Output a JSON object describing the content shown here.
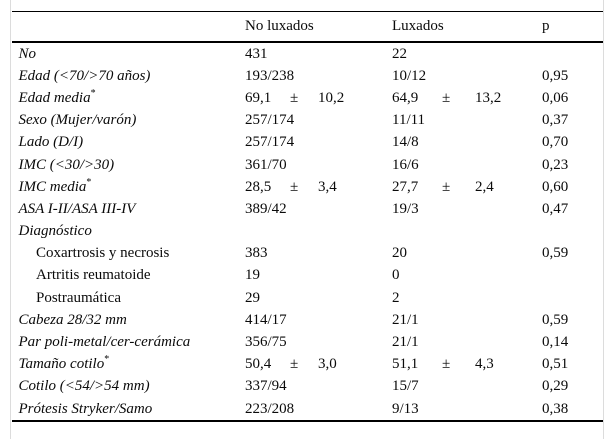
{
  "colors": {
    "background": "#ffffff",
    "text": "#0a0a0a",
    "rule": "#000000",
    "frame": "#dcdcdc"
  },
  "table": {
    "columns": [
      "",
      "No luxados",
      "Luxados",
      "p"
    ],
    "rows": [
      {
        "label": "No",
        "italic": true,
        "indent": false,
        "sup": "",
        "no_luxados": [
          "431",
          "",
          ""
        ],
        "luxados": [
          "22",
          "",
          ""
        ],
        "p": ""
      },
      {
        "label": "Edad (<70/>70 años)",
        "italic": true,
        "indent": false,
        "sup": "",
        "no_luxados": [
          "193/238",
          "",
          ""
        ],
        "luxados": [
          "10/12",
          "",
          ""
        ],
        "p": "0,95"
      },
      {
        "label": "Edad media",
        "italic": true,
        "indent": false,
        "sup": "*",
        "no_luxados": [
          "69,1",
          "±",
          "10,2"
        ],
        "luxados": [
          "64,9",
          "±",
          "13,2"
        ],
        "p": "0,06"
      },
      {
        "label": "Sexo (Mujer/varón)",
        "italic": true,
        "indent": false,
        "sup": "",
        "no_luxados": [
          "257/174",
          "",
          ""
        ],
        "luxados": [
          "11/11",
          "",
          ""
        ],
        "p": "0,37"
      },
      {
        "label": "Lado (D/I)",
        "italic": true,
        "indent": false,
        "sup": "",
        "no_luxados": [
          "257/174",
          "",
          ""
        ],
        "luxados": [
          "14/8",
          "",
          ""
        ],
        "p": "0,70"
      },
      {
        "label": "IMC (<30/>30)",
        "italic": true,
        "indent": false,
        "sup": "",
        "no_luxados": [
          "361/70",
          "",
          ""
        ],
        "luxados": [
          "16/6",
          "",
          ""
        ],
        "p": "0,23"
      },
      {
        "label": "IMC media",
        "italic": true,
        "indent": false,
        "sup": "*",
        "no_luxados": [
          "28,5",
          "±",
          "3,4"
        ],
        "luxados": [
          "27,7",
          "±",
          "2,4"
        ],
        "p": "0,60"
      },
      {
        "label": "ASA I-II/ASA III-IV",
        "italic": true,
        "indent": false,
        "sup": "",
        "no_luxados": [
          "389/42",
          "",
          ""
        ],
        "luxados": [
          "19/3",
          "",
          ""
        ],
        "p": "0,47"
      },
      {
        "label": "Diagnóstico",
        "italic": true,
        "indent": false,
        "sup": "",
        "no_luxados": [
          "",
          "",
          ""
        ],
        "luxados": [
          "",
          "",
          ""
        ],
        "p": ""
      },
      {
        "label": "Coxartrosis y necrosis",
        "italic": false,
        "indent": true,
        "sup": "",
        "no_luxados": [
          "383",
          "",
          ""
        ],
        "luxados": [
          "20",
          "",
          ""
        ],
        "p": "0,59"
      },
      {
        "label": "Artritis reumatoide",
        "italic": false,
        "indent": true,
        "sup": "",
        "no_luxados": [
          "19",
          "",
          ""
        ],
        "luxados": [
          "0",
          "",
          ""
        ],
        "p": ""
      },
      {
        "label": "Postraumática",
        "italic": false,
        "indent": true,
        "sup": "",
        "no_luxados": [
          "29",
          "",
          ""
        ],
        "luxados": [
          "2",
          "",
          ""
        ],
        "p": ""
      },
      {
        "label": "Cabeza 28/32 mm",
        "italic": true,
        "indent": false,
        "sup": "",
        "no_luxados": [
          "414/17",
          "",
          ""
        ],
        "luxados": [
          "21/1",
          "",
          ""
        ],
        "p": "0,59"
      },
      {
        "label": "Par poli-metal/cer-cerámica",
        "italic": true,
        "indent": false,
        "sup": "",
        "no_luxados": [
          "356/75",
          "",
          ""
        ],
        "luxados": [
          "21/1",
          "",
          ""
        ],
        "p": "0,14"
      },
      {
        "label": "Tamaño cotilo",
        "italic": true,
        "indent": false,
        "sup": "*",
        "no_luxados": [
          "50,4",
          "±",
          "3,0"
        ],
        "luxados": [
          "51,1",
          "±",
          "4,3"
        ],
        "p": "0,51"
      },
      {
        "label": "Cotilo (<54/>54 mm)",
        "italic": true,
        "indent": false,
        "sup": "",
        "no_luxados": [
          "337/94",
          "",
          ""
        ],
        "luxados": [
          "15/7",
          "",
          ""
        ],
        "p": "0,29"
      },
      {
        "label": "Prótesis Stryker/Samo",
        "italic": true,
        "indent": false,
        "sup": "",
        "no_luxados": [
          "223/208",
          "",
          ""
        ],
        "luxados": [
          "9/13",
          "",
          ""
        ],
        "p": "0,38"
      }
    ]
  }
}
